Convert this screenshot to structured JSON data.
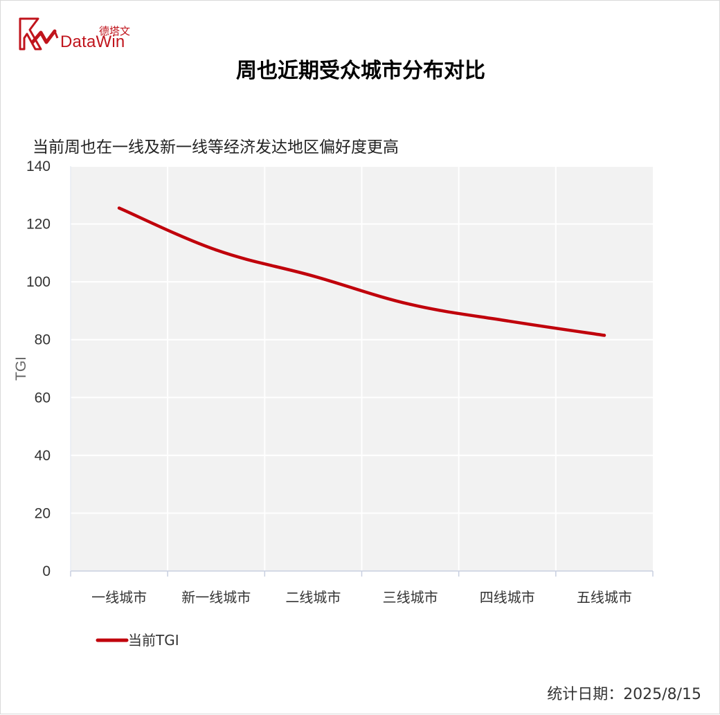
{
  "brand": {
    "cn": "德塔文",
    "en": "DataWin",
    "color": "#c0141c"
  },
  "title": "周也近期受众城市分布对比",
  "subtitle": "当前周也在一线及新一线等经济发达地区偏好度更高",
  "footer": {
    "date_label": "统计日期：2025/8/15"
  },
  "chart_data": {
    "type": "line",
    "categories": [
      "一线城市",
      "新一线城市",
      "二线城市",
      "三线城市",
      "四线城市",
      "五线城市"
    ],
    "series": [
      {
        "name": "当前TGI",
        "values": [
          125.5,
          111,
          102,
          92.2,
          86.5,
          81.5
        ],
        "color": "#c0000b"
      }
    ],
    "xlabel": "",
    "ylabel": "TGI",
    "ylim": [
      0,
      140
    ],
    "yticks": [
      0,
      20,
      40,
      60,
      80,
      100,
      120,
      140
    ],
    "grid": true,
    "plot_background": "#f2f2f2",
    "grid_color": "#ffffff",
    "legend_position": "bottom-left"
  }
}
